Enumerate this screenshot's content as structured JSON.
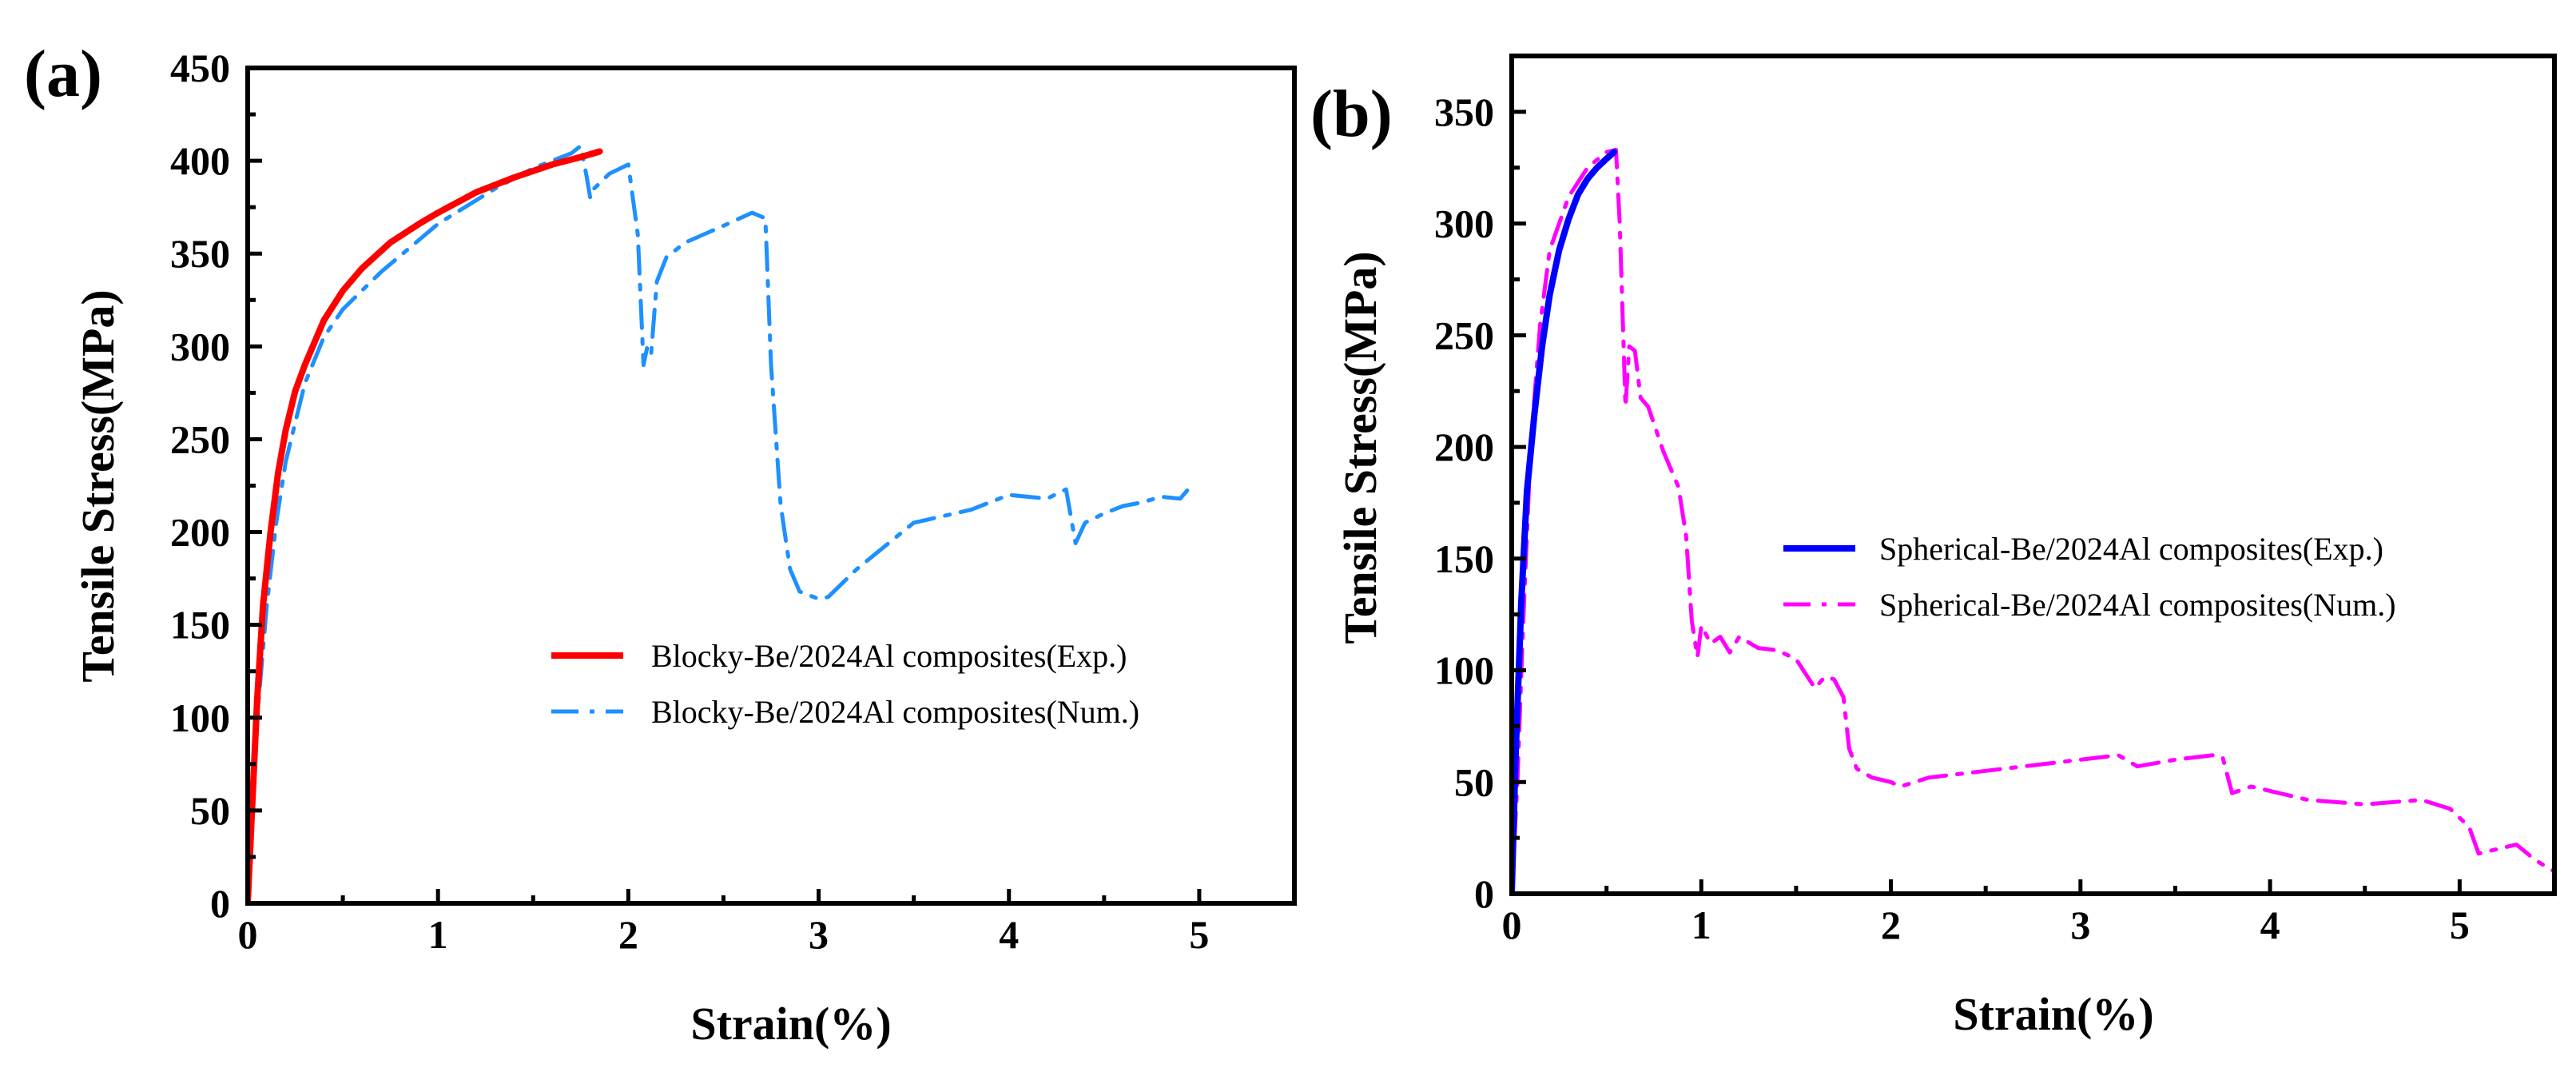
{
  "chart_data": [
    {
      "panel_label": "(a)",
      "type": "line",
      "title": "",
      "xlabel": "Strain(%)",
      "ylabel": "Tensile Stress(MPa)",
      "xlim": [
        0,
        5.5
      ],
      "ylim": [
        0,
        450
      ],
      "xticks": [
        0,
        1,
        2,
        3,
        4,
        5
      ],
      "xtick_labels": [
        "0",
        "1",
        "2",
        "3",
        "4",
        "5"
      ],
      "yticks": [
        0,
        50,
        100,
        150,
        200,
        250,
        300,
        350,
        400,
        450
      ],
      "ytick_labels": [
        "0",
        "50",
        "100",
        "150",
        "200",
        "250",
        "300",
        "350",
        "400",
        "450"
      ],
      "legend_position": "center-right",
      "series": [
        {
          "name": "Blocky-Be/2024Al composites(Exp.)",
          "color": "#ff0000",
          "style": "solid",
          "x": [
            0,
            0.02,
            0.05,
            0.08,
            0.12,
            0.16,
            0.2,
            0.25,
            0.3,
            0.4,
            0.5,
            0.6,
            0.75,
            0.9,
            1.0,
            1.2,
            1.4,
            1.6,
            1.75,
            1.85
          ],
          "y": [
            0,
            45,
            110,
            160,
            200,
            232,
            255,
            276,
            290,
            314,
            330,
            342,
            356,
            366,
            372,
            383,
            391,
            398,
            402,
            405
          ]
        },
        {
          "name": "Blocky-Be/2024Al composites(Num.)",
          "color": "#1e90ff",
          "style": "dashdot",
          "x": [
            0,
            0.02,
            0.05,
            0.1,
            0.15,
            0.2,
            0.3,
            0.4,
            0.5,
            0.7,
            1.0,
            1.3,
            1.5,
            1.7,
            1.75,
            1.78,
            1.8,
            1.82,
            1.9,
            2.0,
            2.05,
            2.08,
            2.1,
            2.12,
            2.15,
            2.2,
            2.3,
            2.5,
            2.65,
            2.72,
            2.75,
            2.8,
            2.85,
            2.9,
            3.0,
            3.05,
            3.2,
            3.5,
            3.8,
            4.0,
            4.2,
            4.3,
            4.35,
            4.4,
            4.5,
            4.6,
            4.7,
            4.8,
            4.9,
            4.95
          ],
          "y": [
            0,
            40,
            100,
            160,
            205,
            238,
            280,
            305,
            320,
            340,
            366,
            385,
            396,
            404,
            408,
            392,
            380,
            385,
            393,
            398,
            360,
            290,
            300,
            296,
            335,
            348,
            356,
            365,
            372,
            369,
            290,
            215,
            180,
            168,
            164,
            165,
            180,
            205,
            212,
            220,
            218,
            223,
            194,
            205,
            210,
            214,
            216,
            219,
            218,
            224
          ]
        }
      ]
    },
    {
      "panel_label": "(b)",
      "type": "line",
      "title": "",
      "xlabel": "Strain(%)",
      "ylabel": "Tensile Stress(MPa)",
      "xlim": [
        0,
        5.5
      ],
      "ylim": [
        0,
        375
      ],
      "xticks": [
        0,
        1,
        2,
        3,
        4,
        5
      ],
      "xtick_labels": [
        "0",
        "1",
        "2",
        "3",
        "4",
        "5"
      ],
      "yticks": [
        0,
        50,
        100,
        150,
        200,
        250,
        300,
        350
      ],
      "ytick_labels": [
        "0",
        "50",
        "100",
        "150",
        "200",
        "250",
        "300",
        "350"
      ],
      "legend_position": "center-right",
      "series": [
        {
          "name": "Spherical-Be/2024Al composites(Exp.)",
          "color": "#0000ff",
          "style": "solid",
          "x": [
            0,
            0.02,
            0.05,
            0.08,
            0.12,
            0.16,
            0.2,
            0.25,
            0.3,
            0.35,
            0.4,
            0.45,
            0.5,
            0.54
          ],
          "y": [
            0,
            60,
            130,
            180,
            215,
            245,
            268,
            288,
            302,
            313,
            320,
            325,
            329,
            332
          ]
        },
        {
          "name": "Spherical-Be/2024Al composites(Num.)",
          "color": "#ff00ff",
          "style": "dashdot",
          "x": [
            0,
            0.03,
            0.06,
            0.1,
            0.15,
            0.2,
            0.3,
            0.4,
            0.5,
            0.55,
            0.57,
            0.6,
            0.62,
            0.65,
            0.68,
            0.72,
            0.8,
            0.88,
            0.92,
            0.95,
            0.98,
            1.0,
            1.05,
            1.1,
            1.15,
            1.2,
            1.3,
            1.4,
            1.5,
            1.6,
            1.65,
            1.7,
            1.75,
            1.78,
            1.82,
            1.9,
            2.0,
            2.05,
            2.2,
            2.5,
            3.0,
            3.2,
            3.3,
            3.5,
            3.7,
            3.75,
            3.8,
            3.9,
            4.0,
            4.2,
            4.5,
            4.8,
            4.95,
            5.05,
            5.1,
            5.2,
            5.3,
            5.4,
            5.5
          ],
          "y": [
            0,
            50,
            120,
            200,
            255,
            288,
            312,
            325,
            332,
            333,
            300,
            218,
            245,
            243,
            222,
            218,
            198,
            182,
            160,
            122,
            106,
            120,
            112,
            115,
            108,
            115,
            110,
            109,
            105,
            92,
            97,
            96,
            88,
            65,
            56,
            52,
            50,
            48,
            52,
            55,
            60,
            62,
            57,
            60,
            62,
            61,
            45,
            48,
            46,
            42,
            40,
            42,
            38,
            30,
            18,
            20,
            22,
            15,
            10
          ]
        }
      ]
    }
  ]
}
